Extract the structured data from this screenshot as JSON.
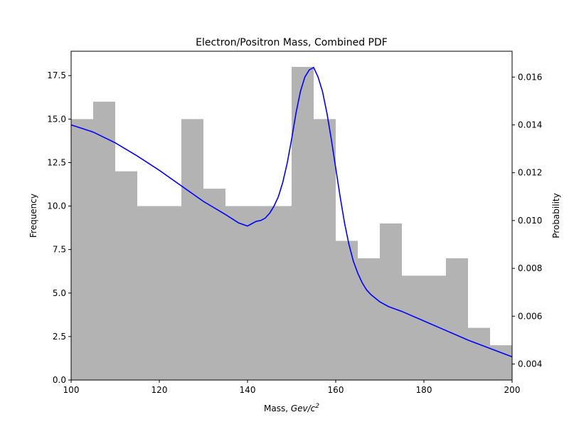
{
  "chart_data": {
    "type": "bar",
    "title": "Electron/Positron Mass, Combined PDF",
    "xlabel_prefix": "Mass, ",
    "xlabel_var": "Gev/c",
    "xlabel_exp": "2",
    "ylabel": "Frequency",
    "y2label": "Probability",
    "xlim": [
      100,
      200
    ],
    "ylim": [
      0,
      18.9
    ],
    "y2lim": [
      0.00333,
      0.01708
    ],
    "xticks": [
      100,
      120,
      140,
      160,
      180,
      200
    ],
    "xtick_labels": [
      "100",
      "120",
      "140",
      "160",
      "180",
      "200"
    ],
    "yticks": [
      0,
      2.5,
      5,
      7.5,
      10,
      12.5,
      15,
      17.5
    ],
    "ytick_labels": [
      "0.0",
      "2.5",
      "5.0",
      "7.5",
      "10.0",
      "12.5",
      "15.0",
      "17.5"
    ],
    "y2ticks": [
      0.004,
      0.006,
      0.008,
      0.01,
      0.012,
      0.014,
      0.016
    ],
    "y2tick_labels": [
      "0.004",
      "0.006",
      "0.008",
      "0.010",
      "0.012",
      "0.014",
      "0.016"
    ],
    "histogram": {
      "bin_width": 5,
      "bin_starts": [
        100,
        105,
        110,
        115,
        120,
        125,
        130,
        135,
        140,
        145,
        150,
        155,
        160,
        165,
        170,
        175,
        180,
        185,
        190,
        195
      ],
      "counts": [
        15,
        16,
        12,
        10,
        10,
        15,
        11,
        10,
        10,
        10,
        18,
        15,
        8,
        7,
        9,
        6,
        6,
        7,
        3,
        2
      ],
      "color": "#b3b3b3"
    },
    "pdf_curve": {
      "color": "#0000ff",
      "x": [
        100,
        105,
        110,
        115,
        120,
        125,
        130,
        135,
        138,
        140,
        142,
        143,
        144,
        145,
        146,
        147,
        148,
        149,
        150,
        151,
        152,
        153,
        154,
        155,
        156,
        157,
        158,
        159,
        160,
        161,
        162,
        163,
        164,
        165,
        166,
        167,
        168,
        170,
        172,
        175,
        180,
        185,
        190,
        195,
        200
      ],
      "y": [
        0.014,
        0.0137,
        0.01325,
        0.0127,
        0.0121,
        0.01145,
        0.0108,
        0.01025,
        0.0099,
        0.00977,
        0.00997,
        0.01,
        0.0101,
        0.0103,
        0.0106,
        0.011,
        0.0116,
        0.0124,
        0.0134,
        0.0145,
        0.0154,
        0.016,
        0.0163,
        0.0164,
        0.016,
        0.0154,
        0.0145,
        0.0134,
        0.0122,
        0.011,
        0.0099,
        0.009,
        0.0083,
        0.0078,
        0.0074,
        0.0071,
        0.0069,
        0.0066,
        0.0064,
        0.0062,
        0.0058,
        0.0054,
        0.005,
        0.00465,
        0.0043
      ]
    }
  }
}
